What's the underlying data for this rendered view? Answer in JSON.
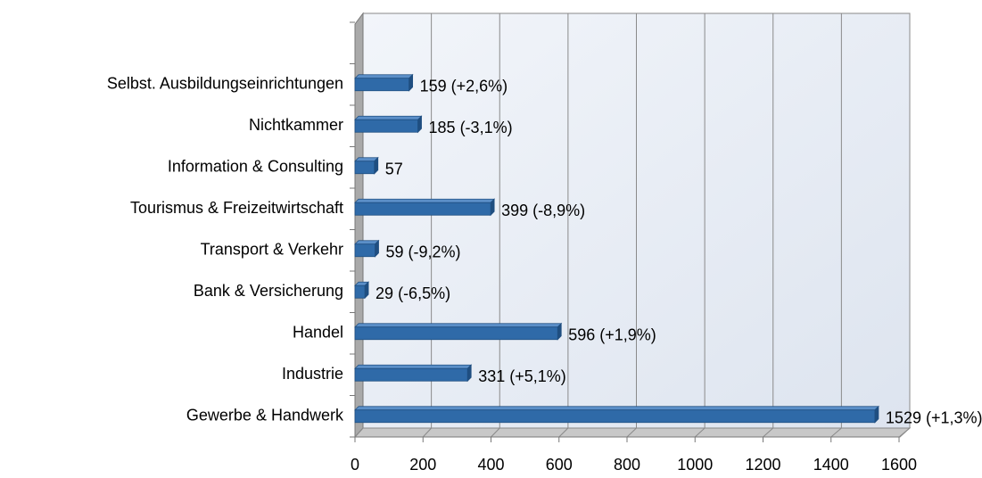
{
  "chart_data": {
    "type": "bar",
    "orientation": "horizontal",
    "categories": [
      "Gewerbe & Handwerk",
      "Industrie",
      "Handel",
      "Bank & Versicherung",
      "Transport & Verkehr",
      "Tourismus & Freizeitwirtschaft",
      "Information & Consulting",
      "Nichtkammer",
      "Selbst. Ausbildungseinrichtungen"
    ],
    "values": [
      1529,
      331,
      596,
      29,
      59,
      399,
      57,
      185,
      159
    ],
    "value_labels": [
      "1529 (+1,3%)",
      "331 (+5,1%)",
      "596 (+1,9%)",
      "29 (-6,5%)",
      "59 (-9,2%)",
      "399 (-8,9%)",
      "57",
      "185 (-3,1%)",
      "159 (+2,6%)"
    ],
    "color": "#2f6aa8",
    "xlim": [
      0,
      1600
    ],
    "xticks": [
      0,
      200,
      400,
      600,
      800,
      1000,
      1200,
      1400,
      1600
    ],
    "grid": true
  }
}
